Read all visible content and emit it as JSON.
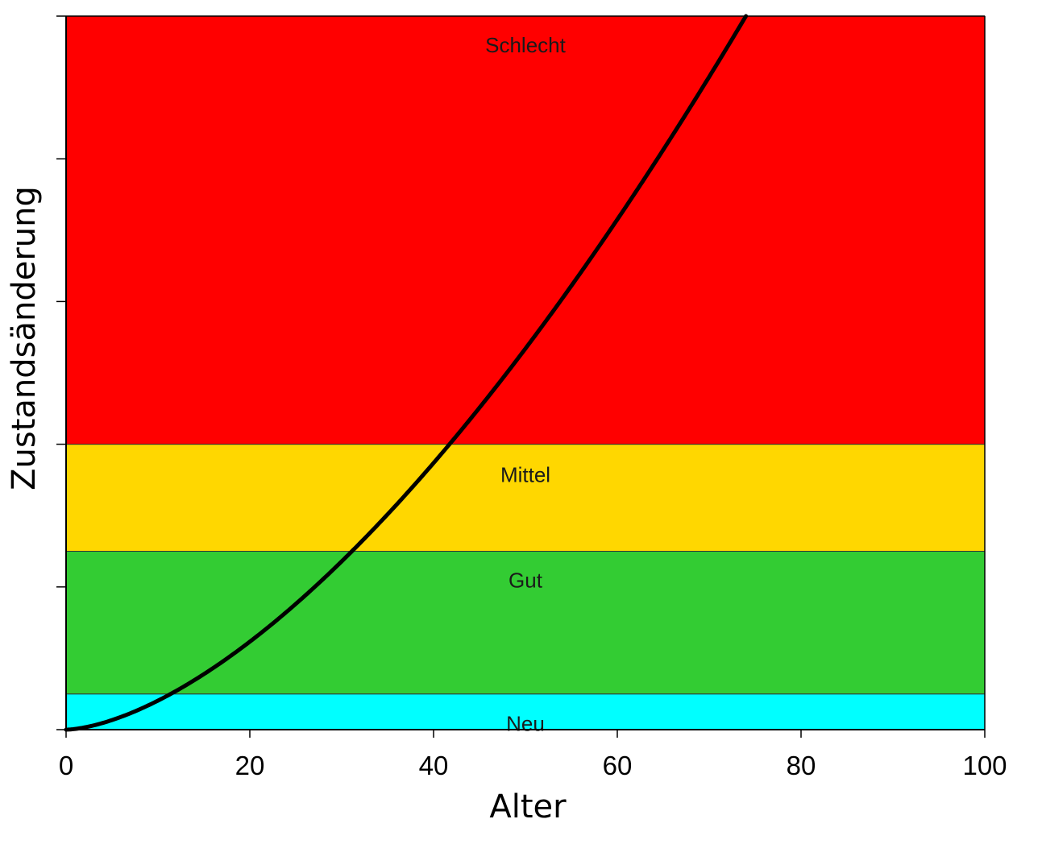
{
  "chart_data": {
    "type": "area",
    "xlabel": "Alter",
    "ylabel": "Zustandsänderung",
    "xlim": [
      0,
      100
    ],
    "x_ticks": [
      "0",
      "20",
      "40",
      "60",
      "80",
      "100"
    ],
    "y_ticks_labeled": false,
    "y_tick_count": 6,
    "grid": false,
    "zones": [
      {
        "label": "Neu",
        "from": 0,
        "to": 0.05,
        "color": "#00ffff"
      },
      {
        "label": "Gut",
        "from": 0.05,
        "to": 0.25,
        "color": "#33cc33"
      },
      {
        "label": "Mittel",
        "from": 0.25,
        "to": 0.4,
        "color": "#ffd700"
      },
      {
        "label": "Schlecht",
        "from": 0.4,
        "to": 1.0,
        "color": "#ff0000"
      }
    ],
    "series": [
      {
        "color": "#000000",
        "x": [
          0,
          5,
          10,
          12,
          15,
          20,
          25,
          30,
          32.3,
          35,
          40,
          43,
          45,
          50,
          55,
          60,
          65,
          70,
          74
        ],
        "y": [
          0,
          0.005,
          0.019,
          0.05,
          0.042,
          0.073,
          0.113,
          0.162,
          0.25,
          0.219,
          0.284,
          0.4,
          0.398,
          0.484,
          0.578,
          0.678,
          0.786,
          0.902,
          1.0
        ]
      }
    ]
  }
}
